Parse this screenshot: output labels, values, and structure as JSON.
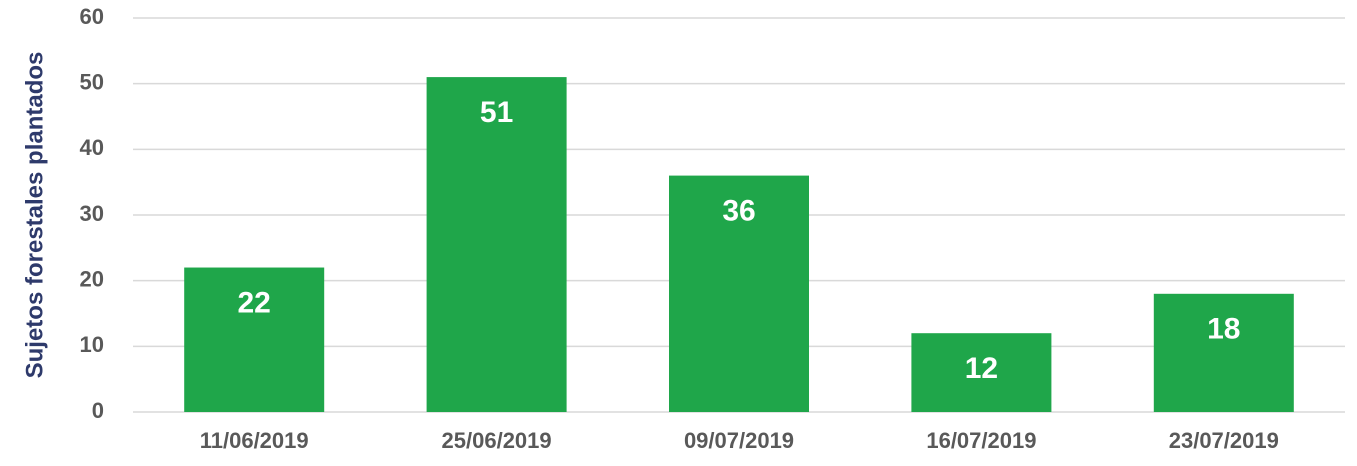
{
  "chart_data": {
    "type": "bar",
    "ylabel": "Sujetos forestales plantados",
    "categories": [
      "11/06/2019",
      "25/06/2019",
      "09/07/2019",
      "16/07/2019",
      "23/07/2019"
    ],
    "values": [
      22,
      51,
      36,
      12,
      18
    ],
    "color": "#1fa64a",
    "ylim": [
      0,
      60
    ],
    "yticks": [
      0,
      10,
      20,
      30,
      40,
      50,
      60
    ],
    "grid": true
  }
}
